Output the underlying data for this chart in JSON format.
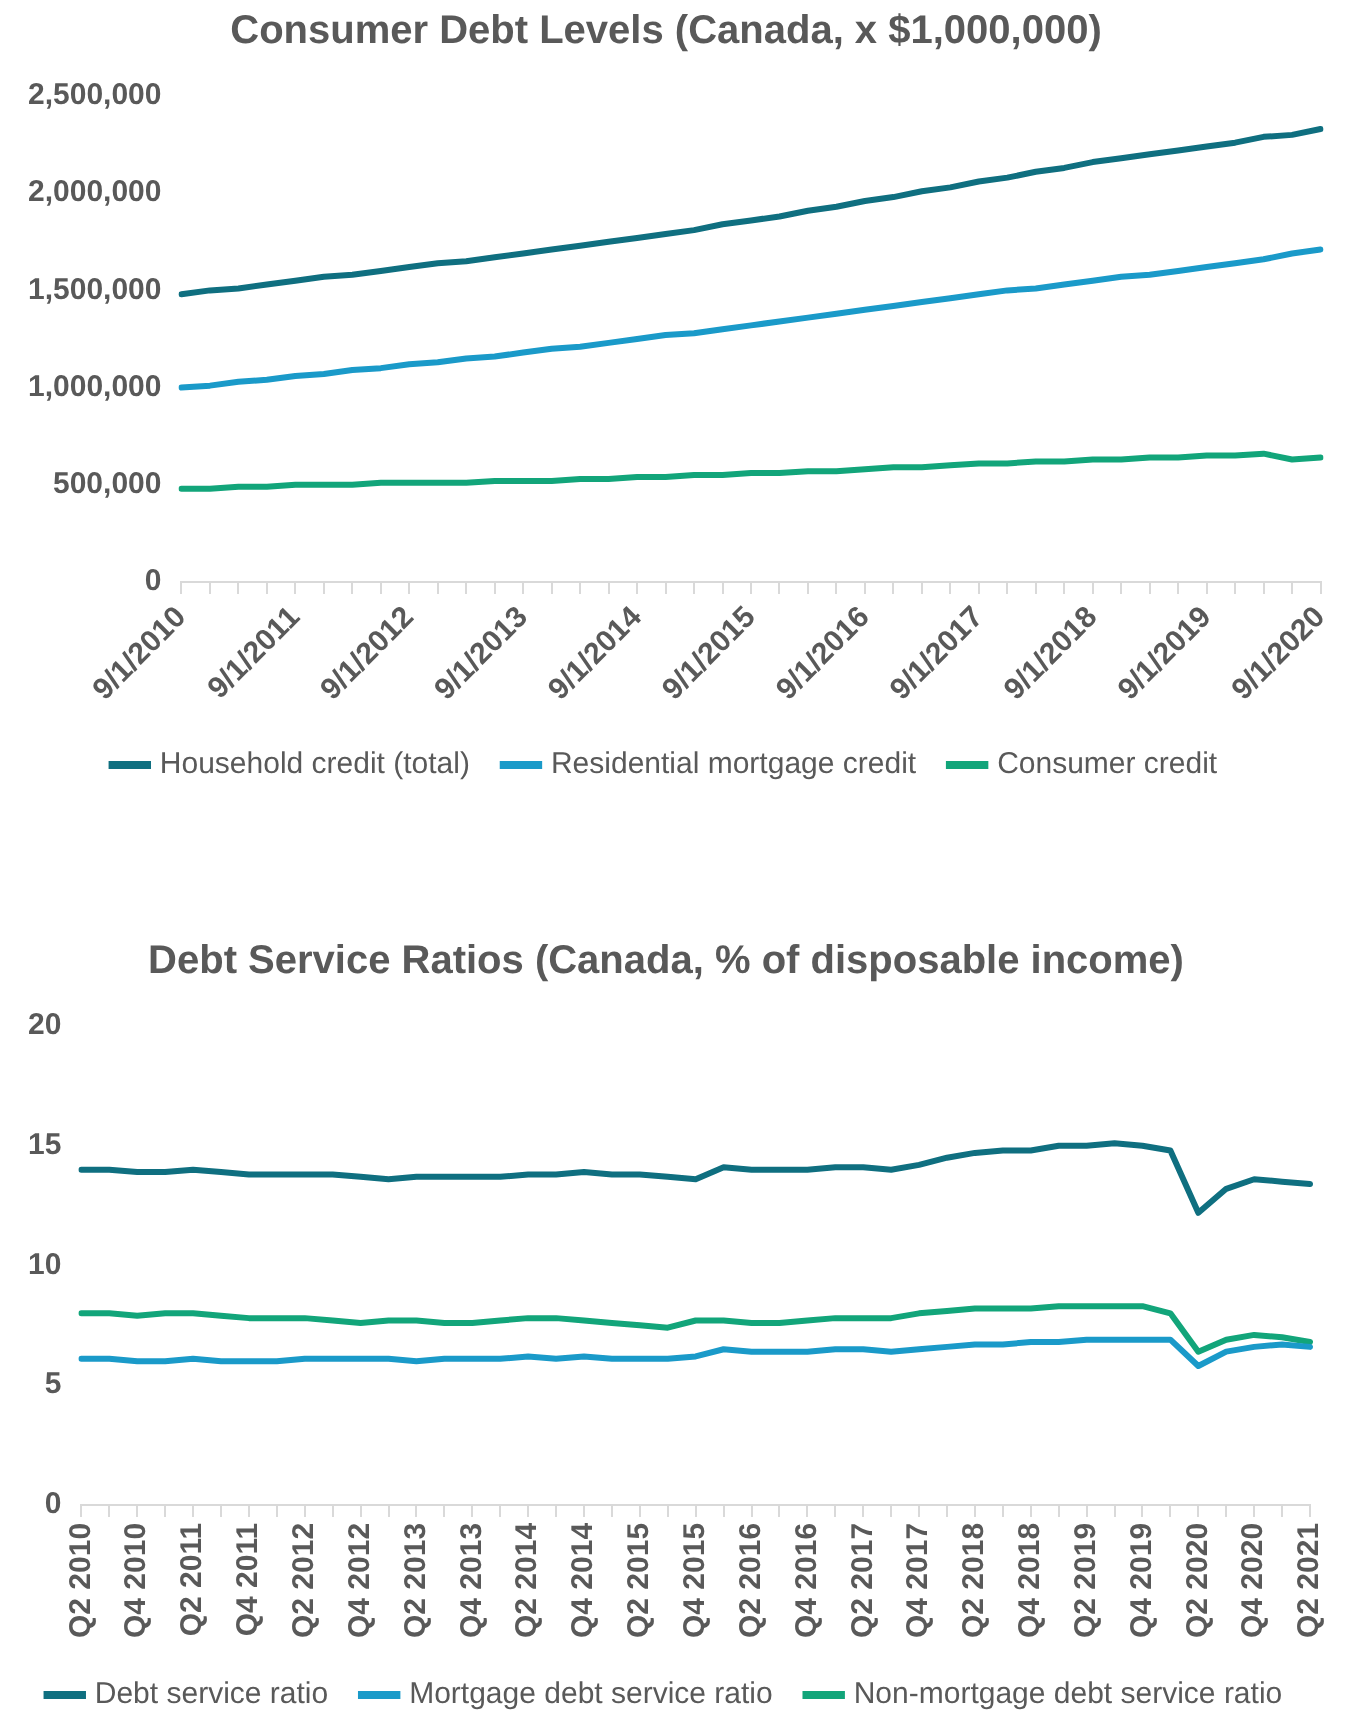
{
  "chart_data": [
    {
      "type": "line",
      "title": "Consumer Debt Levels (Canada, x $1,000,000)",
      "categories": [
        "9/1/2010",
        null,
        null,
        null,
        "9/1/2011",
        null,
        null,
        null,
        "9/1/2012",
        null,
        null,
        null,
        "9/1/2013",
        null,
        null,
        null,
        "9/1/2014",
        null,
        null,
        null,
        "9/1/2015",
        null,
        null,
        null,
        "9/1/2016",
        null,
        null,
        null,
        "9/1/2017",
        null,
        null,
        null,
        "9/1/2018",
        null,
        null,
        null,
        "9/1/2019",
        null,
        null,
        null,
        "9/1/2020"
      ],
      "series": [
        {
          "name": "Household credit (total)",
          "color": "#0f6f80",
          "values": [
            1480000,
            1500000,
            1510000,
            1530000,
            1550000,
            1570000,
            1580000,
            1600000,
            1620000,
            1640000,
            1650000,
            1670000,
            1690000,
            1710000,
            1730000,
            1750000,
            1770000,
            1790000,
            1810000,
            1840000,
            1860000,
            1880000,
            1910000,
            1930000,
            1960000,
            1980000,
            2010000,
            2030000,
            2060000,
            2080000,
            2110000,
            2130000,
            2160000,
            2180000,
            2200000,
            2220000,
            2240000,
            2260000,
            2290000,
            2300000,
            2330000
          ]
        },
        {
          "name": "Residential mortgage credit",
          "color": "#1a9ac9",
          "values": [
            1000000,
            1010000,
            1030000,
            1040000,
            1060000,
            1070000,
            1090000,
            1100000,
            1120000,
            1130000,
            1150000,
            1160000,
            1180000,
            1200000,
            1210000,
            1230000,
            1250000,
            1270000,
            1280000,
            1300000,
            1320000,
            1340000,
            1360000,
            1380000,
            1400000,
            1420000,
            1440000,
            1460000,
            1480000,
            1500000,
            1510000,
            1530000,
            1550000,
            1570000,
            1580000,
            1600000,
            1620000,
            1640000,
            1660000,
            1690000,
            1710000
          ]
        },
        {
          "name": "Consumer credit",
          "color": "#12a57a",
          "values": [
            480000,
            480000,
            490000,
            490000,
            500000,
            500000,
            500000,
            510000,
            510000,
            510000,
            510000,
            520000,
            520000,
            520000,
            530000,
            530000,
            540000,
            540000,
            550000,
            550000,
            560000,
            560000,
            570000,
            570000,
            580000,
            590000,
            590000,
            600000,
            610000,
            610000,
            620000,
            620000,
            630000,
            630000,
            640000,
            640000,
            650000,
            650000,
            660000,
            630000,
            640000
          ]
        }
      ],
      "ylim": [
        0,
        2500000
      ],
      "yticks": [
        {
          "value": 0,
          "label": "0"
        },
        {
          "value": 500000,
          "label": "500,000"
        },
        {
          "value": 1000000,
          "label": "1,000,000"
        },
        {
          "value": 1500000,
          "label": "1,500,000"
        },
        {
          "value": 2000000,
          "label": "2,000,000"
        },
        {
          "value": 2500000,
          "label": "2,500,000"
        }
      ],
      "grid": false,
      "legend": "bottom",
      "marker": "none",
      "line_style": "solid"
    },
    {
      "type": "line",
      "title": "Debt Service Ratios (Canada, % of disposable income)",
      "categories": [
        "Q2 2010",
        null,
        "Q4 2010",
        null,
        "Q2 2011",
        null,
        "Q4 2011",
        null,
        "Q2 2012",
        null,
        "Q4 2012",
        null,
        "Q2 2013",
        null,
        "Q4 2013",
        null,
        "Q2 2014",
        null,
        "Q4 2014",
        null,
        "Q2 2015",
        null,
        "Q4 2015",
        null,
        "Q2 2016",
        null,
        "Q4 2016",
        null,
        "Q2 2017",
        null,
        "Q4 2017",
        null,
        "Q2 2018",
        null,
        "Q4 2018",
        null,
        "Q2 2019",
        null,
        "Q4 2019",
        null,
        "Q2 2020",
        null,
        "Q4 2020",
        null,
        "Q2 2021"
      ],
      "series": [
        {
          "name": "Debt service ratio",
          "color": "#0f6f80",
          "values": [
            14.0,
            14.0,
            13.9,
            13.9,
            14.0,
            13.9,
            13.8,
            13.8,
            13.8,
            13.8,
            13.7,
            13.6,
            13.7,
            13.7,
            13.7,
            13.7,
            13.8,
            13.8,
            13.9,
            13.8,
            13.8,
            13.7,
            13.6,
            14.1,
            14.0,
            14.0,
            14.0,
            14.1,
            14.1,
            14.0,
            14.2,
            14.5,
            14.7,
            14.8,
            14.8,
            15.0,
            15.0,
            15.1,
            15.0,
            14.8,
            12.2,
            13.2,
            13.6,
            13.5,
            13.4
          ]
        },
        {
          "name": "Mortgage debt service ratio",
          "color": "#1a9ac9",
          "values": [
            6.1,
            6.1,
            6.0,
            6.0,
            6.1,
            6.0,
            6.0,
            6.0,
            6.1,
            6.1,
            6.1,
            6.1,
            6.0,
            6.1,
            6.1,
            6.1,
            6.2,
            6.1,
            6.2,
            6.1,
            6.1,
            6.1,
            6.2,
            6.5,
            6.4,
            6.4,
            6.4,
            6.5,
            6.5,
            6.4,
            6.5,
            6.6,
            6.7,
            6.7,
            6.8,
            6.8,
            6.9,
            6.9,
            6.9,
            6.9,
            5.8,
            6.4,
            6.6,
            6.7,
            6.6
          ]
        },
        {
          "name": "Non-mortgage debt service ratio",
          "color": "#12a57a",
          "values": [
            8.0,
            8.0,
            7.9,
            8.0,
            8.0,
            7.9,
            7.8,
            7.8,
            7.8,
            7.7,
            7.6,
            7.7,
            7.7,
            7.6,
            7.6,
            7.7,
            7.8,
            7.8,
            7.7,
            7.6,
            7.5,
            7.4,
            7.7,
            7.7,
            7.6,
            7.6,
            7.7,
            7.8,
            7.8,
            7.8,
            8.0,
            8.1,
            8.2,
            8.2,
            8.2,
            8.3,
            8.3,
            8.3,
            8.3,
            8.0,
            6.4,
            6.9,
            7.1,
            7.0,
            6.8
          ]
        }
      ],
      "ylim": [
        0,
        20
      ],
      "yticks": [
        0,
        5,
        10,
        15,
        20
      ],
      "grid": false,
      "legend": "bottom",
      "marker": "none",
      "line_style": "solid"
    }
  ]
}
